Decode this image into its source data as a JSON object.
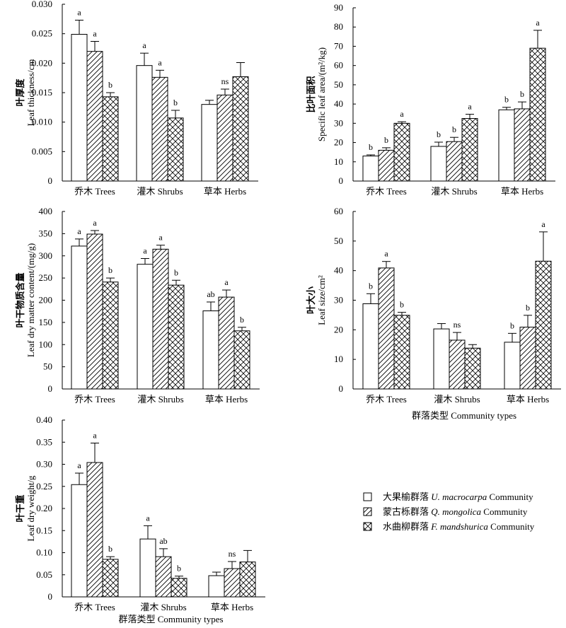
{
  "legend": [
    {
      "prefix": "大果榆群落 ",
      "italic": "U. macrocarpa",
      "suffix": " Community"
    },
    {
      "prefix": "蒙古栎群落 ",
      "italic": "Q. mongolica",
      "suffix": " Community"
    },
    {
      "prefix": "水曲柳群落 ",
      "italic": "F. mandshurica",
      "suffix": " Community"
    }
  ],
  "chart_data": [
    {
      "type": "bar",
      "ylabel_cn": "叶厚度",
      "ylabel_en": "Leaf thickness/cm",
      "categories": [
        "乔木 Trees",
        "灌木 Shrubs",
        "草本 Herbs"
      ],
      "ylim": [
        0,
        0.03
      ],
      "yticks": [
        "0",
        "0.005",
        "0.010",
        "0.015",
        "0.020",
        "0.025",
        "0.030"
      ],
      "series": [
        {
          "values": [
            0.0249,
            0.0196,
            0.013
          ],
          "errors": [
            0.0024,
            0.0021,
            0.0007
          ]
        },
        {
          "values": [
            0.022,
            0.0176,
            0.0146
          ],
          "errors": [
            0.0017,
            0.0012,
            0.001
          ]
        },
        {
          "values": [
            0.0143,
            0.0107,
            0.0177
          ],
          "errors": [
            0.0007,
            0.0013,
            0.0024
          ]
        }
      ],
      "labels": [
        [
          "a",
          "a",
          "b"
        ],
        [
          "a",
          "a",
          "b"
        ],
        [
          "",
          "ns",
          ""
        ]
      ],
      "xlabel": ""
    },
    {
      "type": "bar",
      "ylabel_cn": "比叶面积",
      "ylabel_en": "Specific leaf area/(m²/kg)",
      "categories": [
        "乔木 Trees",
        "灌木 Shrubs",
        "草本 Herbs"
      ],
      "ylim": [
        0,
        90
      ],
      "yticks": [
        "0",
        "10",
        "20",
        "30",
        "40",
        "50",
        "60",
        "70",
        "80",
        "90"
      ],
      "series": [
        {
          "values": [
            13,
            18,
            37
          ],
          "errors": [
            0.6,
            2.2,
            1.3
          ]
        },
        {
          "values": [
            16,
            20.5,
            37.5
          ],
          "errors": [
            1.3,
            2.2,
            3.6
          ]
        },
        {
          "values": [
            30,
            32.5,
            69
          ],
          "errors": [
            0.8,
            2.2,
            9.3
          ]
        }
      ],
      "labels": [
        [
          "b",
          "b",
          "a"
        ],
        [
          "b",
          "b",
          "a"
        ],
        [
          "b",
          "b",
          "a"
        ]
      ],
      "xlabel": ""
    },
    {
      "type": "bar",
      "ylabel_cn": "叶干物质含量",
      "ylabel_en": "Leaf dry matter content/(mg/g)",
      "categories": [
        "乔木 Trees",
        "灌木 Shrubs",
        "草本 Herbs"
      ],
      "ylim": [
        0,
        400
      ],
      "yticks": [
        "0",
        "50",
        "100",
        "150",
        "200",
        "250",
        "300",
        "350",
        "400"
      ],
      "series": [
        {
          "values": [
            322,
            281,
            176
          ],
          "errors": [
            16,
            13,
            20
          ]
        },
        {
          "values": [
            349,
            315,
            207
          ],
          "errors": [
            8,
            9,
            16
          ]
        },
        {
          "values": [
            241,
            234,
            131
          ],
          "errors": [
            9,
            11,
            8
          ]
        }
      ],
      "labels": [
        [
          "a",
          "a",
          "b"
        ],
        [
          "a",
          "a",
          "b"
        ],
        [
          "ab",
          "a",
          "b"
        ]
      ],
      "xlabel": ""
    },
    {
      "type": "bar",
      "ylabel_cn": "叶大小",
      "ylabel_en": "Leaf size/cm²",
      "categories": [
        "乔木 Trees",
        "灌木 Shrubs",
        "草本 Herbs"
      ],
      "ylim": [
        0,
        60
      ],
      "yticks": [
        "0",
        "10",
        "20",
        "30",
        "40",
        "50",
        "60"
      ],
      "series": [
        {
          "values": [
            28.8,
            20.3,
            15.8
          ],
          "errors": [
            3.4,
            1.8,
            3.0
          ]
        },
        {
          "values": [
            40.9,
            16.5,
            20.9
          ],
          "errors": [
            2.2,
            2.6,
            4.0
          ]
        },
        {
          "values": [
            24.9,
            13.8,
            43.2
          ],
          "errors": [
            1.0,
            1.2,
            9.9
          ]
        }
      ],
      "labels": [
        [
          "b",
          "a",
          "b"
        ],
        [
          "",
          "ns",
          ""
        ],
        [
          "b",
          "b",
          "a"
        ]
      ],
      "xlabel": "群落类型 Community types"
    },
    {
      "type": "bar",
      "ylabel_cn": "叶干重",
      "ylabel_en": "Leaf dry weight/g",
      "categories": [
        "乔木 Trees",
        "灌木 Shrubs",
        "草本 Herbs"
      ],
      "ylim": [
        0,
        0.4
      ],
      "yticks": [
        "0",
        "0.05",
        "0.10",
        "0.15",
        "0.20",
        "0.25",
        "0.30",
        "0.35",
        "0.40"
      ],
      "series": [
        {
          "values": [
            0.254,
            0.131,
            0.048
          ],
          "errors": [
            0.026,
            0.03,
            0.008
          ]
        },
        {
          "values": [
            0.304,
            0.091,
            0.064
          ],
          "errors": [
            0.044,
            0.018,
            0.016
          ]
        },
        {
          "values": [
            0.085,
            0.042,
            0.079
          ],
          "errors": [
            0.006,
            0.005,
            0.026
          ]
        }
      ],
      "labels": [
        [
          "a",
          "a",
          "b"
        ],
        [
          "a",
          "ab",
          "b"
        ],
        [
          "",
          "ns",
          ""
        ]
      ],
      "xlabel": "群落类型 Community types"
    }
  ]
}
